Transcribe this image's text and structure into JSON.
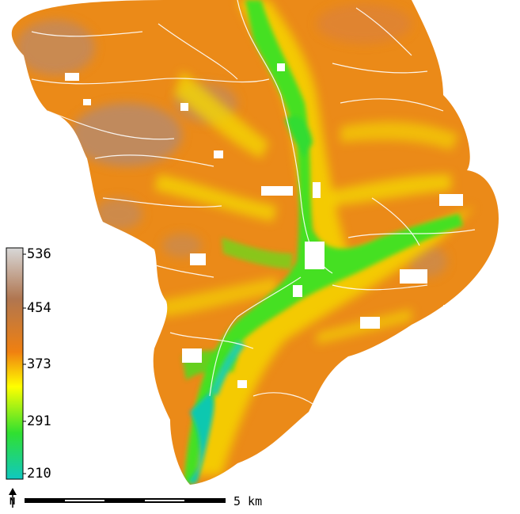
{
  "map": {
    "legend": {
      "labels": [
        "536",
        "454",
        "373",
        "291",
        "210"
      ],
      "colors": [
        "#c8c8c8",
        "#b9805a",
        "#f08010",
        "#ffff00",
        "#20e020",
        "#10c8c0"
      ]
    },
    "scalebar": {
      "label": "5 km"
    },
    "north_arrow": {
      "label": "N"
    },
    "palette": {
      "high": "#a08a78",
      "upper": "#e07a18",
      "mid": "#f0a020",
      "yellow": "#f5f000",
      "green": "#40e020",
      "low": "#10c0b0"
    }
  }
}
